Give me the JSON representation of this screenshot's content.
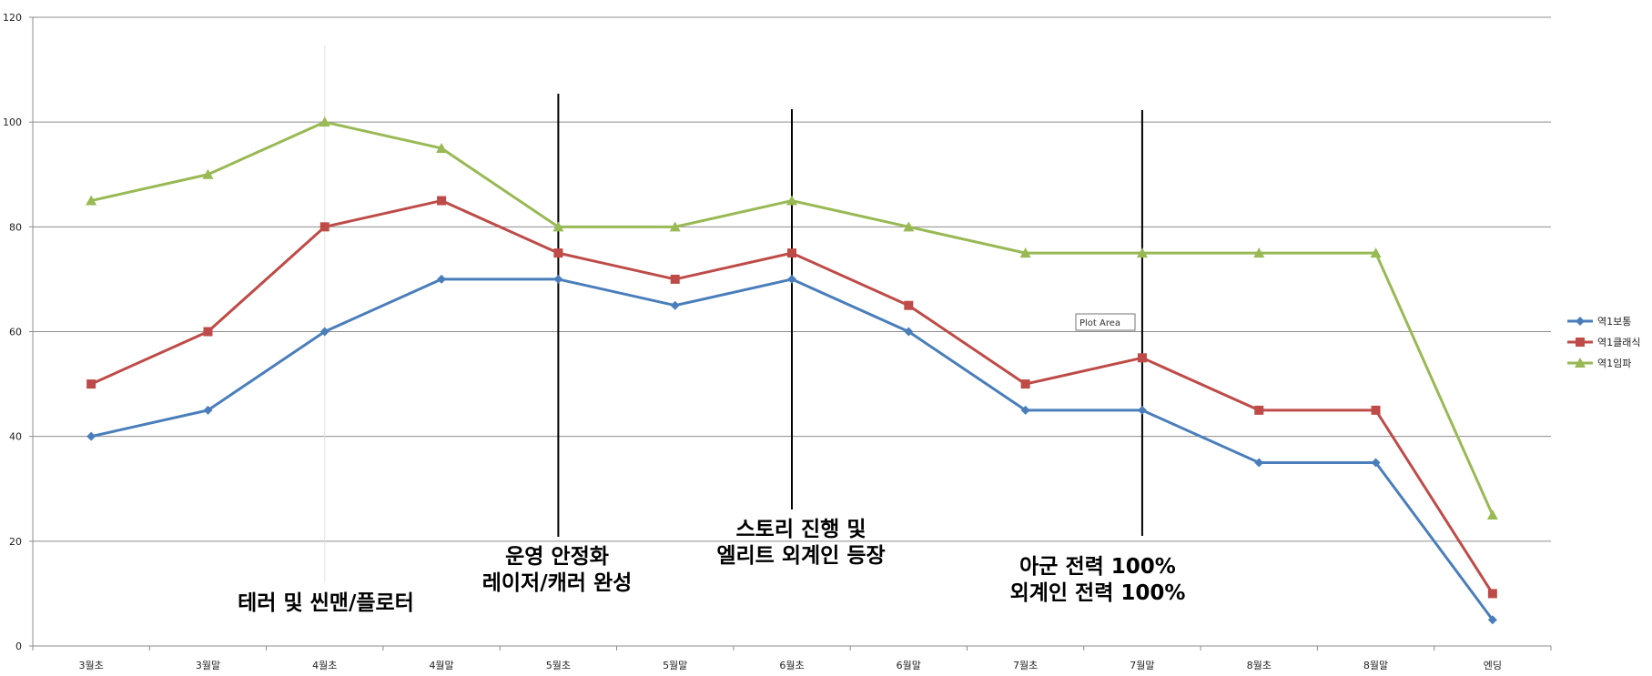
{
  "chart_data": {
    "type": "line",
    "categories": [
      "3월초",
      "3월말",
      "4월초",
      "4월말",
      "5월초",
      "5월말",
      "6월초",
      "6월말",
      "7월초",
      "7월말",
      "8월초",
      "8월말",
      "엔딩"
    ],
    "ylim": [
      0,
      120
    ],
    "yticks": [
      0,
      20,
      40,
      60,
      80,
      100,
      120
    ],
    "grid": true,
    "legend_position": "right",
    "series": [
      {
        "name": "역1보통",
        "color": "#4a7ebb",
        "marker": "diamond",
        "values": [
          40,
          45,
          60,
          70,
          70,
          65,
          70,
          60,
          45,
          45,
          35,
          35,
          5
        ]
      },
      {
        "name": "역1클래식",
        "color": "#be4b48",
        "marker": "square",
        "values": [
          50,
          60,
          80,
          85,
          75,
          70,
          75,
          65,
          50,
          55,
          45,
          45,
          10
        ]
      },
      {
        "name": "역1임파",
        "color": "#98b954",
        "marker": "triangle",
        "values": [
          85,
          90,
          100,
          95,
          80,
          80,
          85,
          80,
          75,
          75,
          75,
          75,
          25
        ]
      }
    ],
    "annotations": [
      {
        "lines": [
          "테러 및 씬맨/플로터"
        ],
        "category": "4월초",
        "marker": "faint"
      },
      {
        "lines": [
          "운영 안정화",
          "레이저/캐러 완성"
        ],
        "category": "5월초",
        "marker": "line"
      },
      {
        "lines": [
          "스토리 진행 및",
          "엘리트 외계인 등장"
        ],
        "category": "6월초",
        "marker": "line"
      },
      {
        "lines": [
          "아군 전력 100%",
          "외계인 전력 100%"
        ],
        "category": "7월말",
        "marker": "line"
      }
    ],
    "tooltip": "Plot Area"
  }
}
